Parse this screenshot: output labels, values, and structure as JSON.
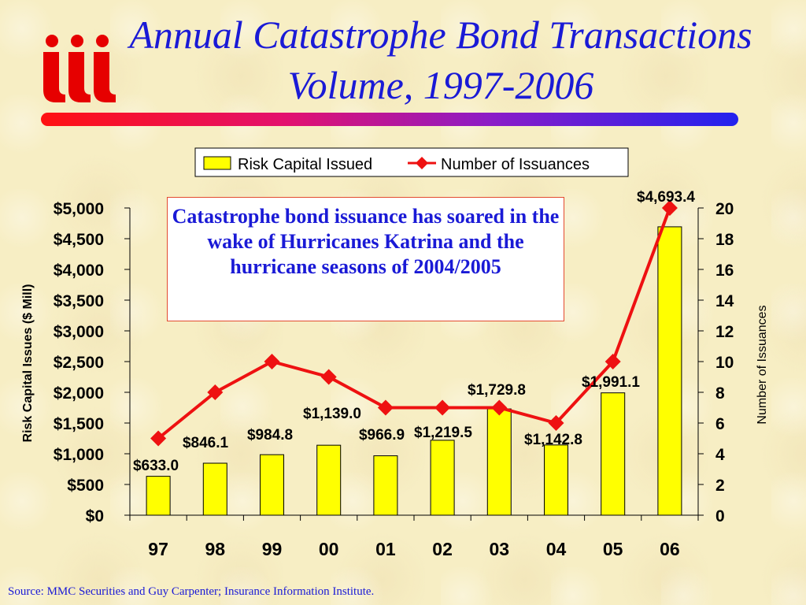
{
  "title": "Annual Catastrophe Bond Transactions Volume, 1997-2006",
  "logo_text": "iii",
  "annotation": "Catastrophe bond issuance has soared in the wake of Hurricanes Katrina and the hurricane seasons of 2004/2005",
  "source": "Source: MMC Securities and Guy Carpenter; Insurance Information Institute.",
  "colors": {
    "bar": "#ffff00",
    "line": "#ee1111",
    "title": "#1a1ad6"
  },
  "chart_data": {
    "type": "bar",
    "categories": [
      "97",
      "98",
      "99",
      "00",
      "01",
      "02",
      "03",
      "04",
      "05",
      "06"
    ],
    "series": [
      {
        "name": "Risk Capital Issued",
        "type": "bar",
        "axis": "left",
        "values": [
          633.0,
          846.1,
          984.8,
          1139.0,
          966.9,
          1219.5,
          1729.8,
          1142.8,
          1991.1,
          4693.4
        ],
        "labels": [
          "$633.0",
          "$846.1",
          "$984.8",
          "$1,139.0",
          "$966.9",
          "$1,219.5",
          "$1,729.8",
          "$1,142.8",
          "$1,991.1",
          "$4,693.4"
        ]
      },
      {
        "name": "Number of Issuances",
        "type": "line",
        "axis": "right",
        "values": [
          5,
          8,
          10,
          9,
          7,
          7,
          7,
          6,
          10,
          20
        ]
      }
    ],
    "ylabel": "Risk Capital Issues ($ Mill)",
    "ylabel_right": "Number of Issuances",
    "ylim": [
      0,
      5000
    ],
    "ylim_right": [
      0,
      20
    ],
    "yticks": [
      "$0",
      "$500",
      "$1,000",
      "$1,500",
      "$2,000",
      "$2,500",
      "$3,000",
      "$3,500",
      "$4,000",
      "$4,500",
      "$5,000"
    ],
    "yticks_right": [
      "0",
      "2",
      "4",
      "6",
      "8",
      "10",
      "12",
      "14",
      "16",
      "18",
      "20"
    ],
    "legend": "top-center",
    "grid": false
  }
}
